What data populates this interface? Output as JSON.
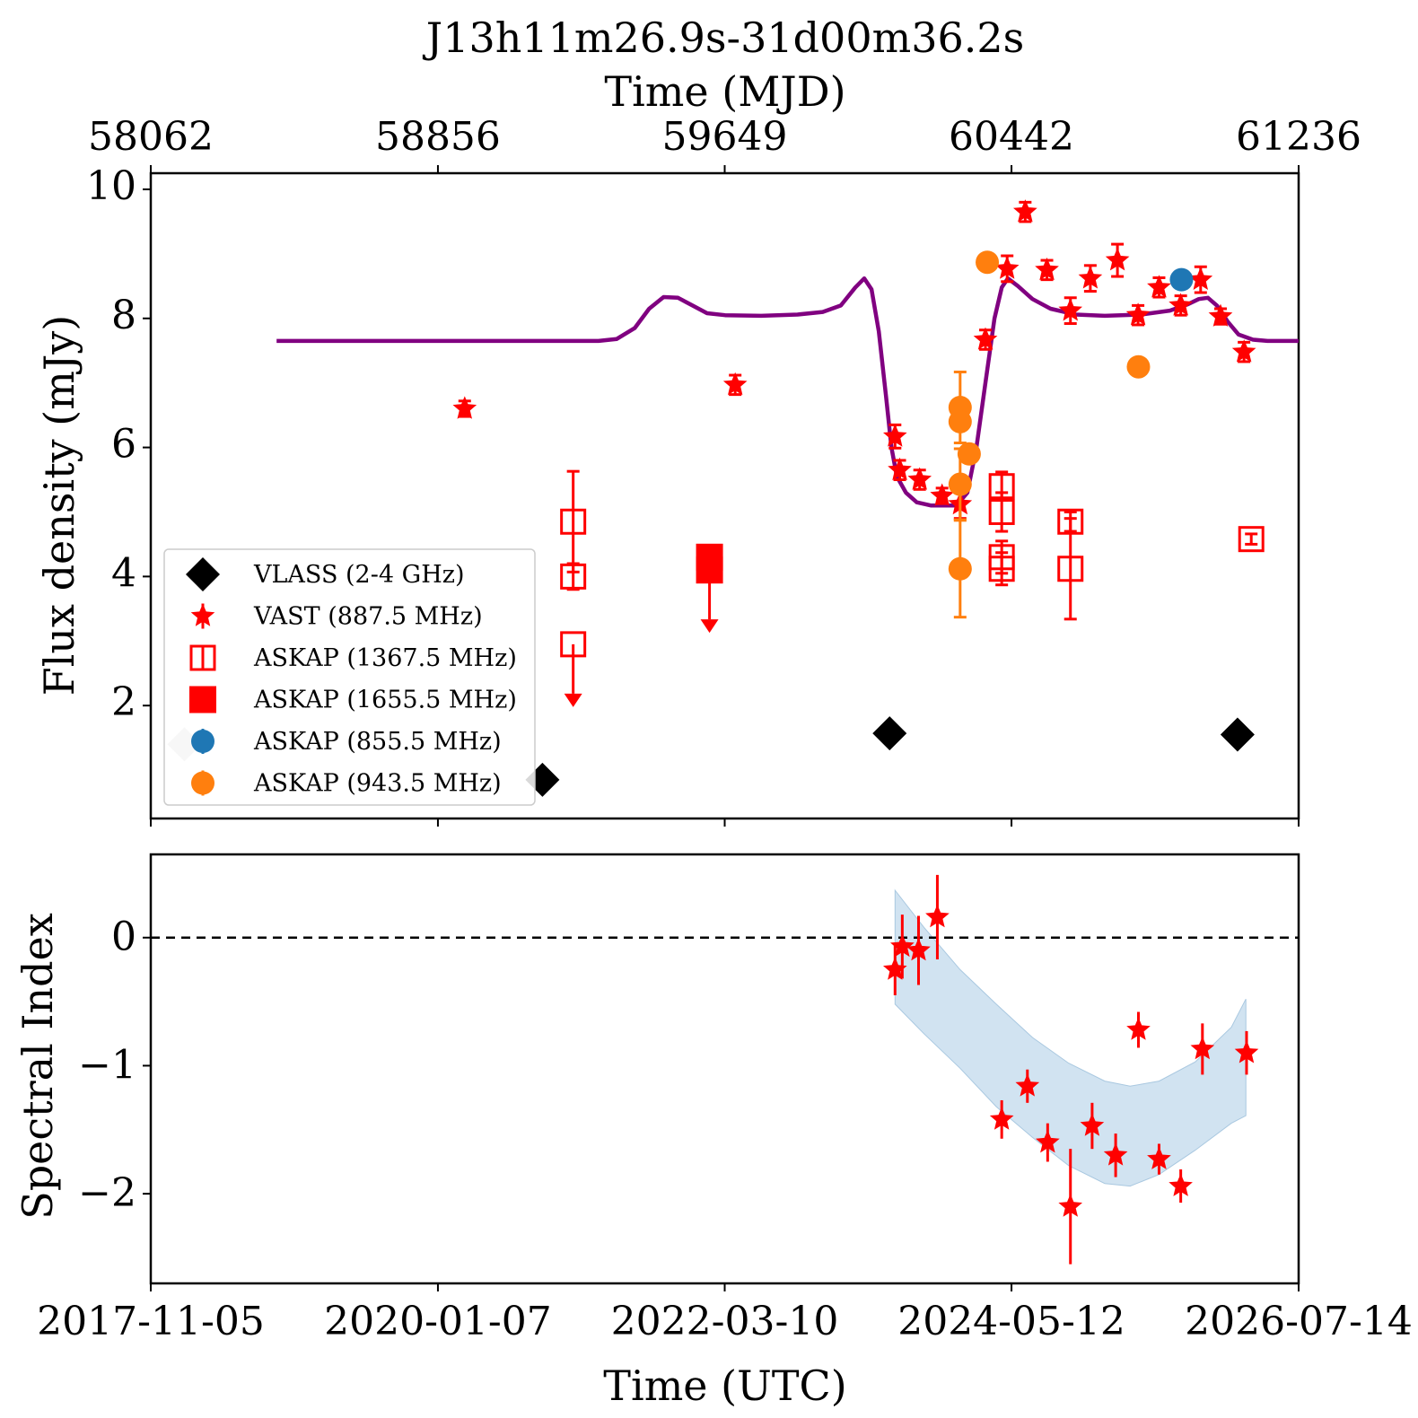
{
  "chart_data": [
    {
      "panel": "top",
      "type": "scatter",
      "title": "J13h11m26.9s-31d00m36.2s",
      "top_axis_label": "Time (MJD)",
      "top_ticks": [
        "58062",
        "58856",
        "59649",
        "60442",
        "61236"
      ],
      "top_tick_values": [
        58062,
        58856,
        59649,
        60442,
        61236
      ],
      "ylabel": "Flux density (mJy)",
      "xlim_mjd": [
        58062,
        61236
      ],
      "ylim": [
        0.25,
        10.25
      ],
      "y_ticks": [
        2,
        4,
        6,
        8,
        10
      ],
      "y_tick_labels": [
        "2",
        "4",
        "6",
        "8",
        "10"
      ],
      "legend_position": "lower-left",
      "legend": [
        {
          "label": "VLASS (2-4 GHz)",
          "marker": "diamond",
          "color": "#000000"
        },
        {
          "label": "VAST (887.5 MHz)",
          "marker": "star",
          "color": "#ff0000"
        },
        {
          "label": "ASKAP (1367.5 MHz)",
          "marker": "open-square",
          "color": "#ff0000"
        },
        {
          "label": "ASKAP (1655.5 MHz)",
          "marker": "filled-square",
          "color": "#ff0000"
        },
        {
          "label": "ASKAP (855.5 MHz)",
          "marker": "circle",
          "color": "#1f77b4"
        },
        {
          "label": "ASKAP (943.5 MHz)",
          "marker": "circle",
          "color": "#ff7f0e"
        }
      ],
      "series": [
        {
          "name": "VLASS (2-4 GHz)",
          "marker": "diamond",
          "color": "#000000",
          "points": [
            {
              "x": 58155,
              "y": 1.4,
              "faded": true
            },
            {
              "x": 59145,
              "y": 0.85
            },
            {
              "x": 60105,
              "y": 1.57
            },
            {
              "x": 61067,
              "y": 1.55
            }
          ]
        },
        {
          "name": "VAST (887.5 MHz)",
          "marker": "star",
          "color": "#ff0000",
          "points": [
            {
              "x": 58930,
              "y": 6.6,
              "err": 0.12
            },
            {
              "x": 59678,
              "y": 6.97,
              "err": 0.15
            },
            {
              "x": 60120,
              "y": 6.17,
              "err": 0.18
            },
            {
              "x": 60133,
              "y": 5.65,
              "err": 0.15
            },
            {
              "x": 60188,
              "y": 5.5,
              "err": 0.15
            },
            {
              "x": 60250,
              "y": 5.25,
              "err": 0.12
            },
            {
              "x": 60300,
              "y": 5.12,
              "err": 0.22
            },
            {
              "x": 60370,
              "y": 7.67,
              "err": 0.15
            },
            {
              "x": 60430,
              "y": 8.77,
              "err": 0.2
            },
            {
              "x": 60480,
              "y": 9.65,
              "err": 0.15
            },
            {
              "x": 60540,
              "y": 8.75,
              "err": 0.15
            },
            {
              "x": 60605,
              "y": 8.12,
              "err": 0.2
            },
            {
              "x": 60660,
              "y": 8.62,
              "err": 0.2
            },
            {
              "x": 60735,
              "y": 8.9,
              "err": 0.25
            },
            {
              "x": 60792,
              "y": 8.05,
              "err": 0.15
            },
            {
              "x": 60850,
              "y": 8.48,
              "err": 0.15
            },
            {
              "x": 60910,
              "y": 8.2,
              "err": 0.15
            },
            {
              "x": 60965,
              "y": 8.6,
              "err": 0.2
            },
            {
              "x": 61020,
              "y": 8.03,
              "err": 0.12
            },
            {
              "x": 61085,
              "y": 7.48,
              "err": 0.15
            }
          ]
        },
        {
          "name": "ASKAP (1367.5 MHz)",
          "marker": "open-square",
          "color": "#ff0000",
          "points": [
            {
              "x": 59230,
              "y": 4.85,
              "err": 0.78
            },
            {
              "x": 59230,
              "y": 4.0,
              "err": 0.2
            },
            {
              "x": 59230,
              "y": 2.95,
              "upper_limit": true
            },
            {
              "x": 60415,
              "y": 5.4,
              "err": 0.22
            },
            {
              "x": 60415,
              "y": 4.12,
              "err": 0.25
            },
            {
              "x": 60415,
              "y": 4.3,
              "err": 0.25
            },
            {
              "x": 60415,
              "y": 5.0,
              "err": 0.3
            },
            {
              "x": 60605,
              "y": 4.85,
              "err": 0.15
            },
            {
              "x": 60605,
              "y": 4.12,
              "err": 0.78
            },
            {
              "x": 61105,
              "y": 4.58,
              "err": 0.08
            }
          ]
        },
        {
          "name": "ASKAP (1655.5 MHz)",
          "marker": "filled-square",
          "color": "#ff0000",
          "points": [
            {
              "x": 59607,
              "y": 4.3
            },
            {
              "x": 59607,
              "y": 4.1,
              "upper_limit": true
            }
          ]
        },
        {
          "name": "ASKAP (855.5 MHz)",
          "marker": "circle",
          "color": "#1f77b4",
          "points": [
            {
              "x": 60912,
              "y": 8.6
            }
          ]
        },
        {
          "name": "ASKAP (943.5 MHz)",
          "marker": "circle",
          "color": "#ff7f0e",
          "points": [
            {
              "x": 60300,
              "y": 6.62,
              "err": 0.55
            },
            {
              "x": 60300,
              "y": 6.4
            },
            {
              "x": 60300,
              "y": 5.43,
              "err": 0.55
            },
            {
              "x": 60300,
              "y": 4.12,
              "err": 0.75
            },
            {
              "x": 60325,
              "y": 5.9
            },
            {
              "x": 60375,
              "y": 8.87
            },
            {
              "x": 60793,
              "y": 7.25
            }
          ]
        }
      ],
      "model_curve": {
        "color": "#800080",
        "points": [
          [
            58410,
            7.65
          ],
          [
            59000,
            7.65
          ],
          [
            59300,
            7.65
          ],
          [
            59350,
            7.68
          ],
          [
            59400,
            7.85
          ],
          [
            59440,
            8.15
          ],
          [
            59480,
            8.33
          ],
          [
            59520,
            8.32
          ],
          [
            59560,
            8.2
          ],
          [
            59600,
            8.08
          ],
          [
            59650,
            8.05
          ],
          [
            59750,
            8.04
          ],
          [
            59850,
            8.06
          ],
          [
            59920,
            8.1
          ],
          [
            59970,
            8.2
          ],
          [
            60010,
            8.48
          ],
          [
            60035,
            8.62
          ],
          [
            60055,
            8.45
          ],
          [
            60075,
            7.8
          ],
          [
            60095,
            6.8
          ],
          [
            60110,
            6.0
          ],
          [
            60125,
            5.55
          ],
          [
            60150,
            5.3
          ],
          [
            60180,
            5.15
          ],
          [
            60220,
            5.1
          ],
          [
            60290,
            5.1
          ],
          [
            60320,
            5.3
          ],
          [
            60345,
            6.0
          ],
          [
            60370,
            7.0
          ],
          [
            60395,
            8.0
          ],
          [
            60415,
            8.48
          ],
          [
            60432,
            8.62
          ],
          [
            60460,
            8.5
          ],
          [
            60500,
            8.3
          ],
          [
            60550,
            8.15
          ],
          [
            60620,
            8.06
          ],
          [
            60700,
            8.04
          ],
          [
            60800,
            8.06
          ],
          [
            60880,
            8.12
          ],
          [
            60930,
            8.22
          ],
          [
            60960,
            8.3
          ],
          [
            60985,
            8.32
          ],
          [
            61010,
            8.2
          ],
          [
            61040,
            7.95
          ],
          [
            61070,
            7.75
          ],
          [
            61110,
            7.67
          ],
          [
            61150,
            7.65
          ],
          [
            61236,
            7.65
          ]
        ]
      }
    },
    {
      "panel": "bottom",
      "type": "scatter",
      "xlabel": "Time (UTC)",
      "ylabel": "Spectral Index",
      "x_ticks": [
        "2017-11-05",
        "2020-01-07",
        "2022-03-10",
        "2024-05-12",
        "2026-07-14"
      ],
      "x_tick_values_mjd": [
        58062,
        58856,
        59649,
        60442,
        61236
      ],
      "ylim": [
        -2.7,
        0.65
      ],
      "y_ticks": [
        0,
        -1,
        -2
      ],
      "y_tick_labels": [
        "0",
        "−1",
        "−2"
      ],
      "reference_line": {
        "y": 0,
        "style": "dashed",
        "color": "#000000"
      },
      "band": {
        "color": "#c5dced",
        "upper": [
          [
            60120,
            0.37
          ],
          [
            60200,
            0.08
          ],
          [
            60300,
            -0.25
          ],
          [
            60400,
            -0.52
          ],
          [
            60500,
            -0.78
          ],
          [
            60600,
            -0.98
          ],
          [
            60700,
            -1.12
          ],
          [
            60770,
            -1.16
          ],
          [
            60850,
            -1.12
          ],
          [
            60950,
            -0.97
          ],
          [
            61050,
            -0.7
          ],
          [
            61090,
            -0.48
          ]
        ],
        "lower": [
          [
            60120,
            -0.52
          ],
          [
            60200,
            -0.75
          ],
          [
            60300,
            -1.02
          ],
          [
            60400,
            -1.32
          ],
          [
            60500,
            -1.56
          ],
          [
            60600,
            -1.78
          ],
          [
            60700,
            -1.92
          ],
          [
            60770,
            -1.94
          ],
          [
            60850,
            -1.85
          ],
          [
            60950,
            -1.66
          ],
          [
            61050,
            -1.45
          ],
          [
            61090,
            -1.39
          ]
        ]
      },
      "series": [
        {
          "name": "spectral index",
          "marker": "star",
          "color": "#ff0000",
          "points": [
            {
              "x": 60120,
              "y": -0.25,
              "err": 0.2
            },
            {
              "x": 60140,
              "y": -0.07,
              "err": 0.25
            },
            {
              "x": 60185,
              "y": -0.1,
              "err": 0.27
            },
            {
              "x": 60237,
              "y": 0.16,
              "err": 0.33
            },
            {
              "x": 60415,
              "y": -1.42,
              "err": 0.15
            },
            {
              "x": 60486,
              "y": -1.16,
              "err": 0.13
            },
            {
              "x": 60542,
              "y": -1.6,
              "err": 0.15
            },
            {
              "x": 60605,
              "y": -2.1,
              "err": 0.45
            },
            {
              "x": 60665,
              "y": -1.47,
              "err": 0.18
            },
            {
              "x": 60730,
              "y": -1.7,
              "err": 0.17
            },
            {
              "x": 60793,
              "y": -0.72,
              "err": 0.14
            },
            {
              "x": 60850,
              "y": -1.73,
              "err": 0.12
            },
            {
              "x": 60910,
              "y": -1.94,
              "err": 0.13
            },
            {
              "x": 60970,
              "y": -0.87,
              "err": 0.2
            },
            {
              "x": 61092,
              "y": -0.9,
              "err": 0.17
            }
          ]
        }
      ]
    }
  ]
}
